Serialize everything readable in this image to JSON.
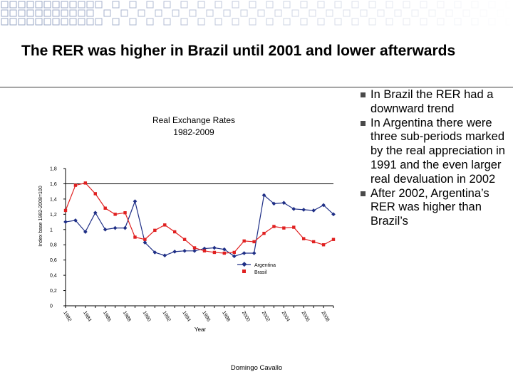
{
  "slide": {
    "title": "The RER was higher in Brazil until 2001 and lower afterwards",
    "footer": "Domingo Cavallo",
    "bullets": [
      "In Brazil the RER had a downward trend",
      "In Argentina there were three sub-periods marked by the real appreciation in 1991 and the even larger real devaluation in 2002",
      "After 2002, Argentina’s RER was higher than  Brazil’s"
    ]
  },
  "chart_data": {
    "type": "line",
    "title": "Real Exchange Rates",
    "subtitle": "1982-2009",
    "xlabel": "Year",
    "ylabel": "Index base 1982-2008=100",
    "ylim": [
      0,
      1.8
    ],
    "yticks": [
      "0",
      "0,2",
      "0,4",
      "0,6",
      "0,8",
      "1",
      "1,2",
      "1,4",
      "1,6",
      "1,8"
    ],
    "x": [
      1982,
      1983,
      1984,
      1985,
      1986,
      1987,
      1988,
      1989,
      1990,
      1991,
      1992,
      1993,
      1994,
      1995,
      1996,
      1997,
      1998,
      1999,
      2000,
      2001,
      2002,
      2003,
      2004,
      2005,
      2006,
      2007,
      2008,
      2009
    ],
    "xticks": [
      "1982",
      "1984",
      "1986",
      "1988",
      "1990",
      "1992",
      "1994",
      "1996",
      "1998",
      "2000",
      "2002",
      "2004",
      "2006",
      "2008"
    ],
    "reference_line": 1.6,
    "series": [
      {
        "name": "Argentina",
        "color": "#1f2f86",
        "marker": "diamond",
        "values": [
          1.1,
          1.12,
          0.97,
          1.22,
          1.0,
          1.02,
          1.02,
          1.37,
          0.83,
          0.7,
          0.66,
          0.71,
          0.72,
          0.72,
          0.75,
          0.76,
          0.74,
          0.65,
          0.69,
          0.69,
          1.45,
          1.34,
          1.35,
          1.27,
          1.26,
          1.25,
          1.32,
          1.2
        ]
      },
      {
        "name": "Brasil",
        "color": "#e02020",
        "marker": "square",
        "values": [
          1.25,
          1.58,
          1.61,
          1.47,
          1.28,
          1.2,
          1.22,
          0.9,
          0.87,
          0.99,
          1.06,
          0.97,
          0.87,
          0.76,
          0.72,
          0.7,
          0.69,
          0.7,
          0.85,
          0.84,
          0.95,
          1.04,
          1.02,
          1.03,
          0.88,
          0.84,
          0.8,
          0.87
        ]
      }
    ],
    "legend": "inside-lower-middle"
  },
  "colors": {
    "corner_squares": "#9aa7c6",
    "bullet_mark": "#4a4a4a",
    "axis": "#000000"
  }
}
